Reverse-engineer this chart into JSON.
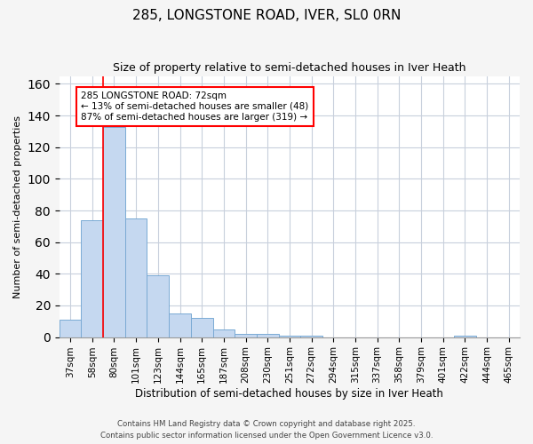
{
  "title1": "285, LONGSTONE ROAD, IVER, SL0 0RN",
  "title2": "Size of property relative to semi-detached houses in Iver Heath",
  "xlabel": "Distribution of semi-detached houses by size in Iver Heath",
  "ylabel": "Number of semi-detached properties",
  "categories": [
    "37sqm",
    "58sqm",
    "80sqm",
    "101sqm",
    "123sqm",
    "144sqm",
    "165sqm",
    "187sqm",
    "208sqm",
    "230sqm",
    "251sqm",
    "272sqm",
    "294sqm",
    "315sqm",
    "337sqm",
    "358sqm",
    "379sqm",
    "401sqm",
    "422sqm",
    "444sqm",
    "465sqm"
  ],
  "values": [
    11,
    74,
    133,
    75,
    39,
    15,
    12,
    5,
    2,
    2,
    1,
    1,
    0,
    0,
    0,
    0,
    0,
    0,
    1,
    0,
    0
  ],
  "bar_color": "#c5d8f0",
  "bar_edge_color": "#7aaad4",
  "red_line_x": 1.5,
  "annotation_title": "285 LONGSTONE ROAD: 72sqm",
  "annotation_line1": "← 13% of semi-detached houses are smaller (48)",
  "annotation_line2": "87% of semi-detached houses are larger (319) →",
  "ylim": [
    0,
    165
  ],
  "yticks": [
    0,
    20,
    40,
    60,
    80,
    100,
    120,
    140,
    160
  ],
  "footer1": "Contains HM Land Registry data © Crown copyright and database right 2025.",
  "footer2": "Contains public sector information licensed under the Open Government Licence v3.0.",
  "background_color": "#f5f5f5",
  "plot_bg_color": "#ffffff"
}
